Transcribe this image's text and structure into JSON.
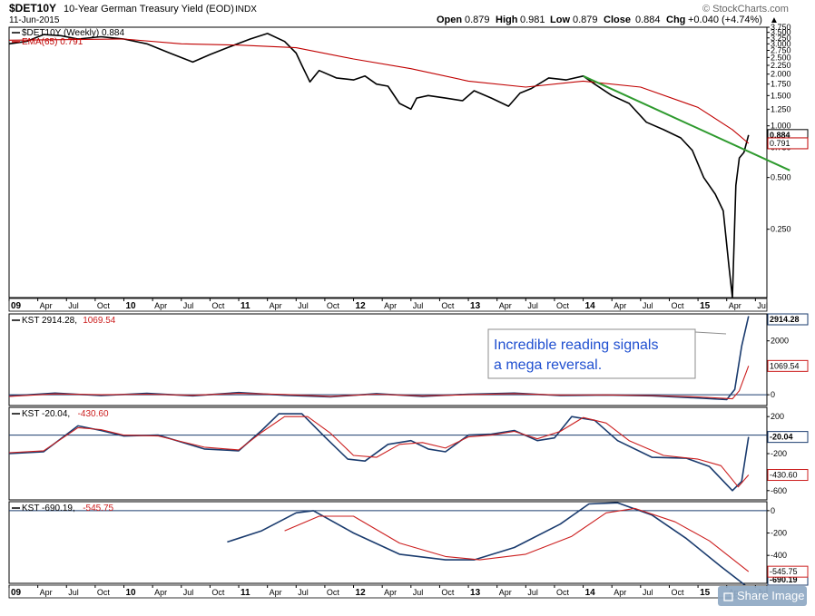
{
  "header": {
    "symbol": "$DET10Y",
    "name": "10-Year German Treasury Yield (EOD)",
    "exchange": "INDX",
    "date": "11-Jun-2015",
    "ohlc": {
      "open_label": "Open",
      "open": "0.879",
      "high_label": "High",
      "high": "0.981",
      "low_label": "Low",
      "low": "0.879",
      "close_label": "Close",
      "close": "0.884",
      "chg_label": "Chg",
      "chg": "+0.040 (+4.74%)"
    },
    "logo": "© StockCharts.com",
    "arrow": "▲"
  },
  "share_button": {
    "label": "Share Image"
  },
  "chart_data": [
    {
      "type": "line",
      "panel": "price",
      "scale": "log",
      "legend_placement": "top-left",
      "x_start": 2009.0,
      "x_end": 2015.6,
      "ylim": [
        0.1,
        3.75
      ],
      "y_ticks": [
        "3.750",
        "3.500",
        "3.250",
        "3.000",
        "2.750",
        "2.500",
        "2.250",
        "2.000",
        "1.750",
        "1.500",
        "1.250",
        "1.000",
        "0.750",
        "0.500",
        "0.250"
      ],
      "y_tick_values": [
        3.75,
        3.5,
        3.25,
        3.0,
        2.75,
        2.5,
        2.25,
        2.0,
        1.75,
        1.5,
        1.25,
        1.0,
        0.75,
        0.5,
        0.25
      ],
      "series": [
        {
          "name": "$DET10Y (Weekly) 0.884",
          "color": "#000000",
          "x": [
            2009.0,
            2009.15,
            2009.3,
            2009.45,
            2009.6,
            2009.8,
            2010.0,
            2010.2,
            2010.4,
            2010.6,
            2010.75,
            2010.9,
            2011.1,
            2011.25,
            2011.4,
            2011.5,
            2011.55,
            2011.62,
            2011.7,
            2011.85,
            2012.0,
            2012.1,
            2012.2,
            2012.3,
            2012.4,
            2012.5,
            2012.55,
            2012.65,
            2012.8,
            2012.95,
            2013.05,
            2013.2,
            2013.35,
            2013.45,
            2013.55,
            2013.7,
            2013.85,
            2014.0,
            2014.1,
            2014.25,
            2014.4,
            2014.55,
            2014.7,
            2014.85,
            2014.95,
            2015.05,
            2015.15,
            2015.22,
            2015.27,
            2015.3,
            2015.33,
            2015.36,
            2015.4,
            2015.44
          ],
          "y": [
            3.0,
            3.1,
            3.4,
            3.35,
            3.2,
            3.3,
            3.2,
            3.0,
            2.65,
            2.35,
            2.6,
            2.85,
            3.2,
            3.45,
            3.1,
            2.65,
            2.25,
            1.8,
            2.1,
            1.9,
            1.85,
            1.95,
            1.75,
            1.7,
            1.35,
            1.25,
            1.45,
            1.5,
            1.45,
            1.4,
            1.6,
            1.45,
            1.3,
            1.55,
            1.65,
            1.9,
            1.85,
            1.95,
            1.75,
            1.5,
            1.35,
            1.05,
            0.95,
            0.85,
            0.72,
            0.5,
            0.4,
            0.32,
            0.15,
            0.1,
            0.45,
            0.65,
            0.7,
            0.884
          ]
        },
        {
          "name": "EMA(65) 0.791",
          "color": "#c00000",
          "x": [
            2009.0,
            2010.0,
            2010.5,
            2011.0,
            2011.5,
            2012.0,
            2012.5,
            2013.0,
            2013.5,
            2014.0,
            2014.5,
            2015.0,
            2015.3,
            2015.44
          ],
          "y": [
            3.15,
            3.2,
            3.0,
            2.95,
            2.85,
            2.45,
            2.15,
            1.82,
            1.68,
            1.82,
            1.68,
            1.28,
            0.95,
            0.791
          ]
        },
        {
          "name": "Trendline",
          "color": "#2e9a2e",
          "x": [
            2014.0,
            2015.8
          ],
          "y": [
            1.95,
            0.55
          ]
        }
      ],
      "last_labels": [
        "0.884",
        "0.791"
      ]
    },
    {
      "type": "line",
      "panel": "kst1",
      "title": "KST",
      "values_label": [
        "2914.28",
        "1069.54"
      ],
      "ylim": [
        -400,
        3000
      ],
      "y_ticks": [
        "2000",
        "0"
      ],
      "y_tick_values": [
        2000,
        0
      ],
      "series": [
        {
          "name": "KST",
          "color": "#1a3b6e",
          "x": [
            2009.0,
            2009.4,
            2009.8,
            2010.2,
            2010.6,
            2011.0,
            2011.4,
            2011.8,
            2012.2,
            2012.6,
            2013.0,
            2013.4,
            2013.8,
            2014.2,
            2014.6,
            2015.0,
            2015.25,
            2015.32,
            2015.38,
            2015.44
          ],
          "y": [
            -50,
            60,
            -30,
            50,
            -40,
            80,
            -20,
            -80,
            40,
            -60,
            20,
            60,
            -30,
            -10,
            -40,
            -120,
            -180,
            200,
            1800,
            2914.28
          ]
        },
        {
          "name": "Signal",
          "color": "#cc1f1f",
          "x": [
            2009.0,
            2009.4,
            2009.8,
            2010.2,
            2010.6,
            2011.0,
            2011.4,
            2011.8,
            2012.2,
            2012.6,
            2013.0,
            2013.4,
            2013.8,
            2014.2,
            2014.6,
            2015.0,
            2015.3,
            2015.36,
            2015.44
          ],
          "y": [
            -60,
            30,
            0,
            20,
            -20,
            50,
            10,
            -60,
            20,
            -40,
            0,
            40,
            -10,
            -5,
            -30,
            -80,
            -150,
            150,
            1069.54
          ]
        }
      ],
      "last_labels": [
        "2914.28",
        "1069.54"
      ]
    },
    {
      "type": "line",
      "panel": "kst2",
      "title": "KST",
      "values_label": [
        "-20.04",
        "-430.60"
      ],
      "ylim": [
        -700,
        300
      ],
      "y_ticks": [
        "200",
        "0",
        "-200",
        "-400",
        "-600"
      ],
      "y_tick_values": [
        200,
        0,
        -200,
        -400,
        -600
      ],
      "series": [
        {
          "name": "KST",
          "color": "#1a3b6e",
          "x": [
            2009.0,
            2009.3,
            2009.6,
            2009.8,
            2010.0,
            2010.3,
            2010.7,
            2011.0,
            2011.2,
            2011.35,
            2011.55,
            2011.75,
            2011.95,
            2012.1,
            2012.3,
            2012.5,
            2012.65,
            2012.8,
            2013.0,
            2013.2,
            2013.4,
            2013.6,
            2013.75,
            2013.9,
            2014.1,
            2014.3,
            2014.6,
            2014.9,
            2015.1,
            2015.3,
            2015.38,
            2015.44
          ],
          "y": [
            -200,
            -180,
            100,
            50,
            -10,
            0,
            -150,
            -170,
            50,
            230,
            230,
            -20,
            -260,
            -280,
            -100,
            -60,
            -150,
            -180,
            0,
            10,
            50,
            -60,
            -30,
            200,
            160,
            -60,
            -240,
            -250,
            -340,
            -600,
            -500,
            -20.04
          ]
        },
        {
          "name": "Signal",
          "color": "#cc1f1f",
          "x": [
            2009.0,
            2009.3,
            2009.6,
            2009.8,
            2010.0,
            2010.3,
            2010.7,
            2011.0,
            2011.2,
            2011.4,
            2011.6,
            2011.8,
            2012.0,
            2012.2,
            2012.4,
            2012.6,
            2012.8,
            2013.0,
            2013.2,
            2013.4,
            2013.6,
            2013.8,
            2014.0,
            2014.2,
            2014.4,
            2014.7,
            2015.0,
            2015.2,
            2015.35,
            2015.44
          ],
          "y": [
            -190,
            -170,
            80,
            60,
            0,
            -10,
            -130,
            -160,
            30,
            200,
            200,
            20,
            -220,
            -240,
            -100,
            -80,
            -140,
            -20,
            0,
            40,
            -40,
            40,
            190,
            130,
            -60,
            -220,
            -260,
            -330,
            -560,
            -430.6
          ]
        }
      ],
      "last_labels": [
        "-20.04",
        "-430.60"
      ]
    },
    {
      "type": "line",
      "panel": "kst3",
      "title": "KST",
      "values_label": [
        "-690.19",
        "-545.75"
      ],
      "ylim": [
        -650,
        80
      ],
      "y_ticks": [
        "0",
        "-200",
        "-400",
        "-600"
      ],
      "y_tick_values": [
        0,
        -200,
        -400,
        -600
      ],
      "series": [
        {
          "name": "KST",
          "color": "#1a3b6e",
          "x": [
            2010.9,
            2011.2,
            2011.5,
            2011.65,
            2012.0,
            2012.4,
            2012.8,
            2013.05,
            2013.4,
            2013.8,
            2014.05,
            2014.3,
            2014.6,
            2014.9,
            2015.2,
            2015.44
          ],
          "y": [
            -280,
            -180,
            -20,
            0,
            -200,
            -390,
            -440,
            -440,
            -330,
            -120,
            60,
            70,
            -40,
            -250,
            -500,
            -690.19
          ]
        },
        {
          "name": "Signal",
          "color": "#cc1f1f",
          "x": [
            2011.4,
            2011.7,
            2012.0,
            2012.4,
            2012.8,
            2013.1,
            2013.5,
            2013.9,
            2014.2,
            2014.45,
            2014.8,
            2015.1,
            2015.44
          ],
          "y": [
            -180,
            -50,
            -50,
            -290,
            -410,
            -440,
            -390,
            -230,
            -20,
            20,
            -100,
            -270,
            -545.75
          ]
        }
      ],
      "last_labels": [
        "-690.19",
        "-545.75"
      ]
    }
  ],
  "x_axis": {
    "labels": [
      {
        "t": "09",
        "x": 2009.0,
        "year": true
      },
      {
        "t": "Apr",
        "x": 2009.25
      },
      {
        "t": "Jul",
        "x": 2009.5
      },
      {
        "t": "Oct",
        "x": 2009.75
      },
      {
        "t": "10",
        "x": 2010.0,
        "year": true
      },
      {
        "t": "Apr",
        "x": 2010.25
      },
      {
        "t": "Jul",
        "x": 2010.5
      },
      {
        "t": "Oct",
        "x": 2010.75
      },
      {
        "t": "11",
        "x": 2011.0,
        "year": true
      },
      {
        "t": "Apr",
        "x": 2011.25
      },
      {
        "t": "Jul",
        "x": 2011.5
      },
      {
        "t": "Oct",
        "x": 2011.75
      },
      {
        "t": "12",
        "x": 2012.0,
        "year": true
      },
      {
        "t": "Apr",
        "x": 2012.25
      },
      {
        "t": "Jul",
        "x": 2012.5
      },
      {
        "t": "Oct",
        "x": 2012.75
      },
      {
        "t": "13",
        "x": 2013.0,
        "year": true
      },
      {
        "t": "Apr",
        "x": 2013.25
      },
      {
        "t": "Jul",
        "x": 2013.5
      },
      {
        "t": "Oct",
        "x": 2013.75
      },
      {
        "t": "14",
        "x": 2014.0,
        "year": true
      },
      {
        "t": "Apr",
        "x": 2014.25
      },
      {
        "t": "Jul",
        "x": 2014.5
      },
      {
        "t": "Oct",
        "x": 2014.75
      },
      {
        "t": "15",
        "x": 2015.0,
        "year": true
      },
      {
        "t": "Apr",
        "x": 2015.25
      },
      {
        "t": "Jul",
        "x": 2015.5
      }
    ]
  },
  "annotation": {
    "line1": "Incredible reading signals",
    "line2": "a mega reversal."
  }
}
